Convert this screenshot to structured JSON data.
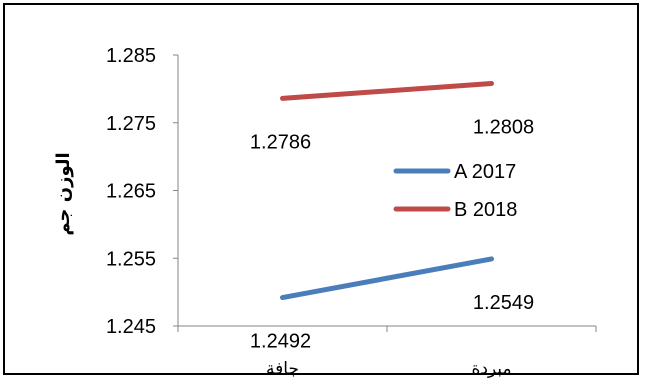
{
  "chart_data": {
    "type": "line",
    "categories": [
      "جافة",
      "مبردة"
    ],
    "series": [
      {
        "name": "A 2017",
        "values": [
          1.2492,
          1.2549
        ],
        "color": "#4a7ebb",
        "labels": [
          "1.2492",
          "1.2549"
        ]
      },
      {
        "name": "B 2018",
        "values": [
          1.2786,
          1.2808
        ],
        "color": "#be4b48",
        "labels": [
          "1.2786",
          "1.2808"
        ]
      }
    ],
    "ylabel": "الوزن جم",
    "xlabel": "",
    "ylim": [
      1.245,
      1.285
    ],
    "yticks": [
      "1.285",
      "1.275",
      "1.265",
      "1.255",
      "1.245"
    ],
    "grid": false,
    "legend": "right"
  }
}
